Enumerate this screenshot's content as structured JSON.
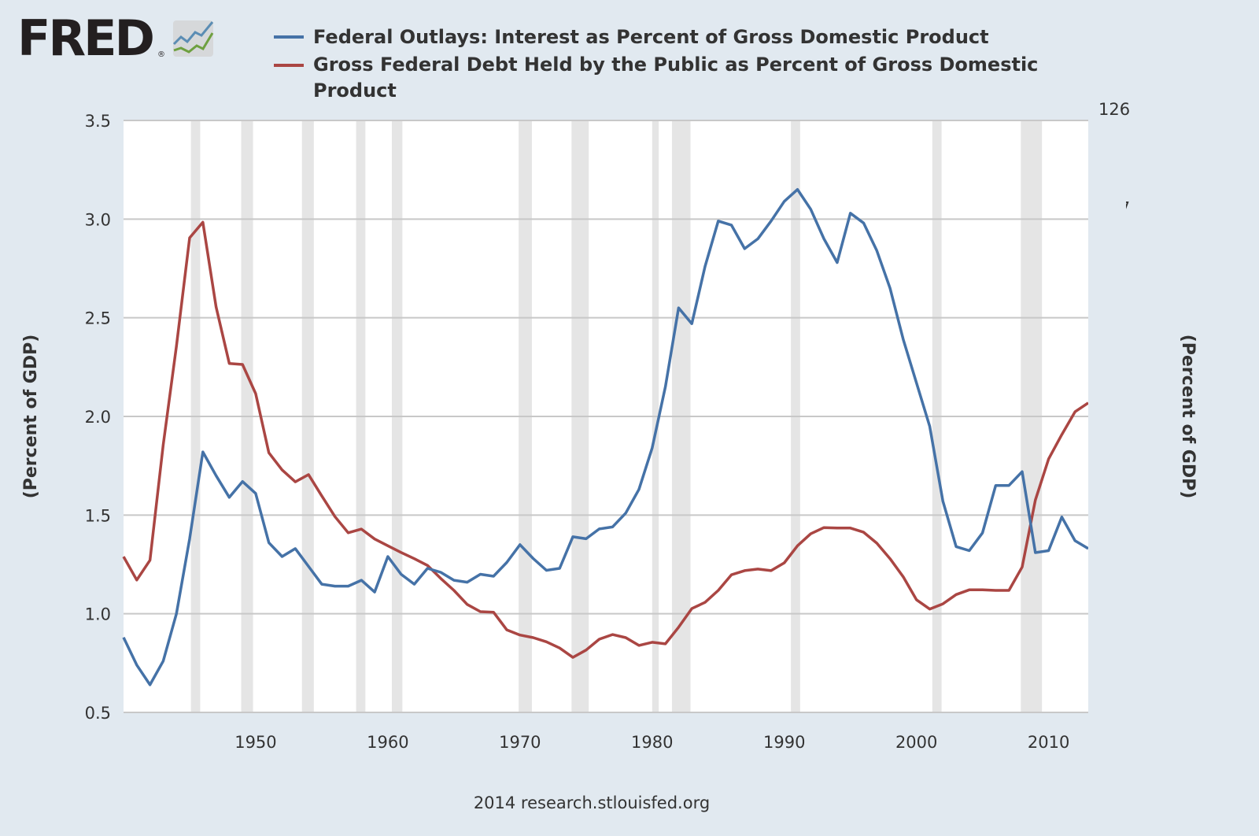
{
  "logo": {
    "text": "FRED",
    "registered": "®"
  },
  "footer": {
    "credit": "2014 research.stlouisfed.org"
  },
  "colors": {
    "background": "#e1e9f0",
    "plot": "#ffffff",
    "grid": "#c8c8c8",
    "recession": "#e5e5e5",
    "blue": "#4572a7",
    "red": "#aa4643"
  },
  "chart_data": {
    "type": "line",
    "x": [
      1940,
      1941,
      1942,
      1943,
      1944,
      1945,
      1946,
      1947,
      1948,
      1949,
      1950,
      1951,
      1952,
      1953,
      1954,
      1955,
      1956,
      1957,
      1958,
      1959,
      1960,
      1961,
      1962,
      1963,
      1964,
      1965,
      1966,
      1967,
      1968,
      1969,
      1970,
      1971,
      1972,
      1973,
      1974,
      1975,
      1976,
      1977,
      1978,
      1979,
      1980,
      1981,
      1982,
      1983,
      1984,
      1985,
      1986,
      1987,
      1988,
      1989,
      1990,
      1991,
      1992,
      1993,
      1994,
      1995,
      1996,
      1997,
      1998,
      1999,
      2000,
      2001,
      2002,
      2003,
      2004,
      2005,
      2006,
      2007,
      2008,
      2009,
      2010,
      2011,
      2012,
      2013
    ],
    "xlim": [
      1940,
      2013
    ],
    "xticks": [
      "1950",
      "1960",
      "1970",
      "1980",
      "1990",
      "2000",
      "2010"
    ],
    "y_left": {
      "label": "(Percent of GDP)",
      "lim": [
        0.5,
        3.5
      ],
      "ticks": [
        "0.5",
        "1.0",
        "1.5",
        "2.0",
        "2.5",
        "3.0",
        "3.5"
      ]
    },
    "y_right": {
      "label": "(Percent of GDP)",
      "lim": [
        12,
        126
      ],
      "ticks": [
        "12",
        "31",
        "50",
        "69",
        "88",
        "107",
        "126"
      ]
    },
    "grid": true,
    "legend_position": "top",
    "recessions": [
      [
        1945.1,
        1945.8
      ],
      [
        1948.9,
        1949.8
      ],
      [
        1953.5,
        1954.4
      ],
      [
        1957.6,
        1958.3
      ],
      [
        1960.3,
        1961.1
      ],
      [
        1969.9,
        1970.9
      ],
      [
        1973.9,
        1975.2
      ],
      [
        1980.0,
        1980.5
      ],
      [
        1981.5,
        1982.9
      ],
      [
        1990.5,
        1991.2
      ],
      [
        2001.2,
        2001.9
      ],
      [
        2007.9,
        2009.5
      ]
    ],
    "series": [
      {
        "name": "Federal Outlays: Interest as Percent of Gross Domestic Product",
        "axis": "left",
        "color": "#4572a7",
        "values": [
          0.88,
          0.74,
          0.64,
          0.76,
          1.0,
          1.38,
          1.82,
          1.7,
          1.59,
          1.67,
          1.61,
          1.36,
          1.29,
          1.33,
          1.24,
          1.15,
          1.14,
          1.14,
          1.17,
          1.11,
          1.29,
          1.2,
          1.15,
          1.23,
          1.21,
          1.17,
          1.16,
          1.2,
          1.19,
          1.26,
          1.35,
          1.28,
          1.22,
          1.23,
          1.39,
          1.38,
          1.43,
          1.44,
          1.51,
          1.63,
          1.84,
          2.15,
          2.55,
          2.47,
          2.76,
          2.99,
          2.97,
          2.85,
          2.9,
          2.99,
          3.09,
          3.15,
          3.05,
          2.9,
          2.78,
          3.03,
          2.98,
          2.84,
          2.65,
          2.39,
          2.17,
          1.95,
          1.57,
          1.34,
          1.32,
          1.41,
          1.65,
          1.65,
          1.72,
          1.31,
          1.32,
          1.49,
          1.37,
          1.33
        ]
      },
      {
        "name": "Gross Federal Debt Held by the Public as Percent of Gross Domestic Product",
        "axis": "right",
        "color": "#aa4643",
        "values": [
          42.0,
          37.5,
          41.3,
          63.5,
          82.5,
          103.4,
          106.4,
          90.1,
          79.2,
          79.0,
          73.4,
          62.0,
          58.7,
          56.4,
          57.8,
          53.7,
          49.7,
          46.6,
          47.3,
          45.4,
          44.1,
          42.8,
          41.6,
          40.3,
          37.8,
          35.5,
          32.8,
          31.4,
          31.3,
          27.9,
          26.9,
          26.4,
          25.6,
          24.4,
          22.6,
          24.0,
          26.1,
          27.0,
          26.4,
          24.9,
          25.5,
          25.2,
          28.4,
          32.0,
          33.2,
          35.5,
          38.5,
          39.3,
          39.6,
          39.3,
          40.8,
          44.1,
          46.4,
          47.6,
          47.5,
          47.5,
          46.7,
          44.6,
          41.6,
          38.1,
          33.7,
          31.9,
          32.9,
          34.7,
          35.6,
          35.6,
          35.5,
          35.5,
          40.0,
          52.9,
          60.8,
          65.5,
          69.9,
          71.6
        ]
      }
    ]
  }
}
